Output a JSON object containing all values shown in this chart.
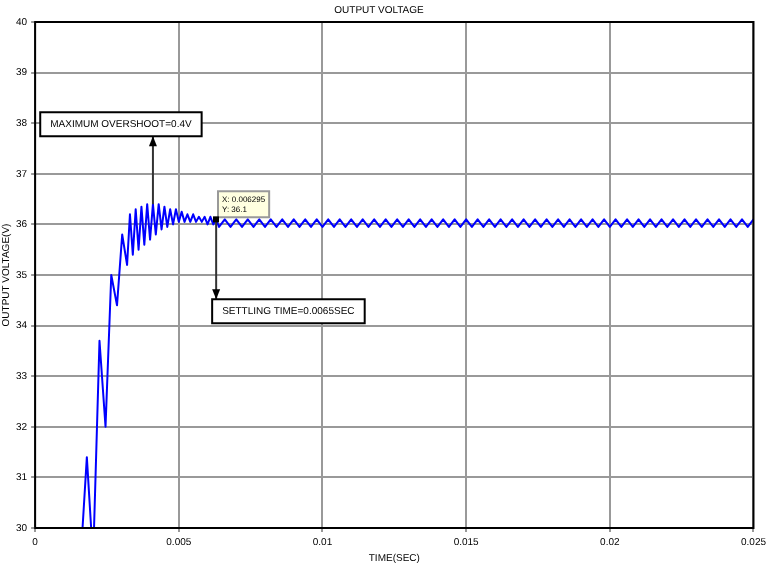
{
  "chart_data": {
    "type": "line",
    "title": "OUTPUT VOLTAGE",
    "xlabel": "TIME(SEC)",
    "ylabel": "OUTPUT VOLTAGE(V)",
    "xlim": [
      0,
      0.025
    ],
    "xticks": [
      0,
      0.005,
      0.01,
      0.015,
      0.02,
      0.025
    ],
    "ylim": [
      30,
      40
    ],
    "yticks": [
      30,
      31,
      32,
      33,
      34,
      35,
      36,
      37,
      38,
      39,
      40
    ],
    "grid": true,
    "legend": false,
    "marker": "none",
    "line_style": "solid",
    "annotations": [
      {
        "text": "MAXIMUM OVERSHOOT=0.4V",
        "x": 0.0041,
        "y": 36.4
      },
      {
        "text": "SETTLING TIME=0.0065SEC",
        "x": 0.0063,
        "y": 36.1
      },
      {
        "text": "X: 0.006295\nY: 36.1",
        "x": 0.006295,
        "y": 36.1
      }
    ],
    "series": [
      {
        "color": "#0000ff",
        "x": [
          0.00165,
          0.0018,
          0.00195,
          0.00205,
          0.00224,
          0.00245,
          0.00265,
          0.00285,
          0.00303,
          0.0032,
          0.0033,
          0.0034,
          0.0035,
          0.0036,
          0.0037,
          0.0038,
          0.0039,
          0.004,
          0.0041,
          0.0042,
          0.0043,
          0.0044,
          0.0045,
          0.0046,
          0.0047,
          0.0048,
          0.0049,
          0.005,
          0.0051,
          0.0052,
          0.0053,
          0.0054,
          0.0055,
          0.0056,
          0.0057,
          0.0058,
          0.0059,
          0.006,
          0.0061,
          0.0062,
          0.0063,
          0.0064,
          0.0066,
          0.0068,
          0.007,
          0.0072,
          0.0074,
          0.0076,
          0.0078,
          0.008,
          0.0082,
          0.0084,
          0.0086,
          0.0088,
          0.009,
          0.0092,
          0.0094,
          0.0096,
          0.0098,
          0.01,
          0.0102,
          0.0104,
          0.0106,
          0.0108,
          0.011,
          0.0112,
          0.0114,
          0.0116,
          0.0118,
          0.012,
          0.0122,
          0.0124,
          0.0126,
          0.0128,
          0.013,
          0.0132,
          0.0134,
          0.0136,
          0.0138,
          0.014,
          0.0142,
          0.0144,
          0.0146,
          0.0148,
          0.015,
          0.0152,
          0.0154,
          0.0156,
          0.0158,
          0.016,
          0.0162,
          0.0164,
          0.0166,
          0.0168,
          0.017,
          0.0172,
          0.0174,
          0.0176,
          0.0178,
          0.018,
          0.0182,
          0.0184,
          0.0186,
          0.0188,
          0.019,
          0.0192,
          0.0194,
          0.0196,
          0.0198,
          0.02,
          0.0202,
          0.0204,
          0.0206,
          0.0208,
          0.021,
          0.0212,
          0.0214,
          0.0216,
          0.0218,
          0.022,
          0.0222,
          0.0224,
          0.0226,
          0.0228,
          0.023,
          0.0232,
          0.0234,
          0.0236,
          0.0238,
          0.024,
          0.0242,
          0.0244,
          0.0246,
          0.0248,
          0.025
        ],
        "values": [
          30,
          31.4,
          30,
          30,
          33.7,
          32.0,
          35.0,
          34.4,
          35.8,
          35.2,
          36.2,
          35.4,
          36.3,
          35.5,
          36.35,
          35.6,
          36.4,
          35.7,
          36.4,
          35.8,
          36.4,
          35.9,
          36.35,
          35.95,
          36.3,
          36.0,
          36.3,
          36.05,
          36.25,
          36.05,
          36.2,
          36.05,
          36.2,
          36.05,
          36.15,
          36.05,
          36.15,
          36.0,
          36.15,
          36.0,
          36.1,
          35.95,
          36.1,
          35.95,
          36.1,
          35.95,
          36.1,
          35.95,
          36.1,
          35.95,
          36.1,
          35.95,
          36.1,
          35.95,
          36.1,
          35.95,
          36.1,
          35.95,
          36.1,
          35.95,
          36.1,
          35.95,
          36.1,
          35.95,
          36.1,
          35.95,
          36.1,
          35.95,
          36.1,
          35.95,
          36.1,
          35.95,
          36.1,
          35.95,
          36.1,
          35.95,
          36.1,
          35.95,
          36.1,
          35.95,
          36.1,
          35.95,
          36.1,
          35.95,
          36.1,
          35.95,
          36.1,
          35.95,
          36.1,
          35.95,
          36.1,
          35.95,
          36.1,
          35.95,
          36.1,
          35.95,
          36.1,
          35.95,
          36.1,
          35.95,
          36.1,
          35.95,
          36.1,
          35.95,
          36.1,
          35.95,
          36.1,
          35.95,
          36.1,
          35.95,
          36.1,
          35.95,
          36.1,
          35.95,
          36.1,
          35.95,
          36.1,
          35.95,
          36.1,
          35.95,
          36.1,
          35.95,
          36.1,
          35.95,
          36.1,
          35.95,
          36.1,
          35.95,
          36.1,
          35.95,
          36.1,
          35.95,
          36.1,
          35.95,
          36.1
        ]
      }
    ]
  }
}
